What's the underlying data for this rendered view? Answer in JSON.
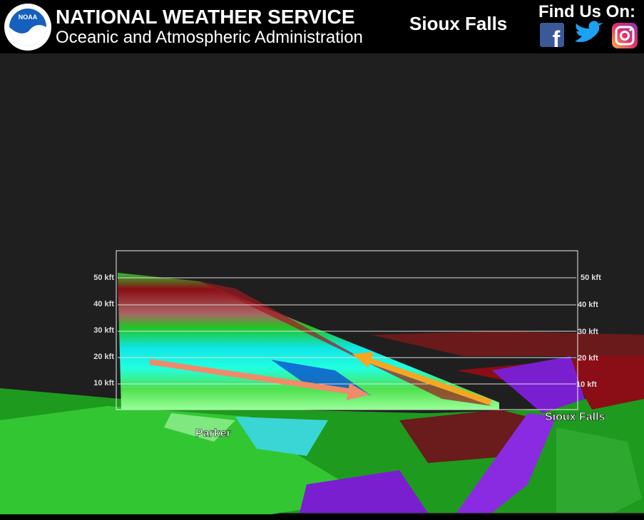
{
  "header": {
    "title": "NATIONAL WEATHER SERVICE",
    "subtitle": "Oceanic and Atmospheric Administration",
    "office": "Sioux Falls",
    "social": "Find Us On:",
    "logo_text": "NOAA"
  },
  "cross_section": {
    "altitude_labels": [
      "50 kft",
      "40 kft",
      "30 kft",
      "20 kft",
      "10 kft"
    ]
  },
  "places": [
    "Parker",
    "Sioux Falls"
  ]
}
